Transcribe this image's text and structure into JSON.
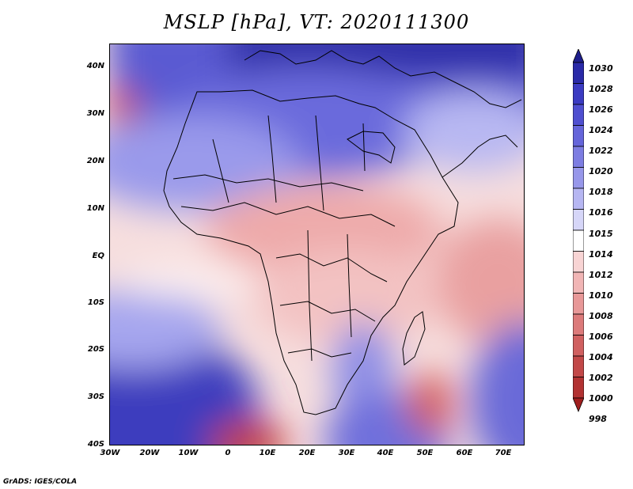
{
  "title": "MSLP [hPa], VT: 2020111300",
  "footer": "GrADS: IGES/COLA",
  "y_axis": [
    "40N",
    "30N",
    "20N",
    "10N",
    "EQ",
    "10S",
    "20S",
    "30S",
    "40S"
  ],
  "x_axis": [
    "30W",
    "20W",
    "10W",
    "0",
    "10E",
    "20E",
    "30E",
    "40E",
    "50E",
    "60E",
    "70E"
  ],
  "colorbar": {
    "levels": [
      "1030",
      "1028",
      "1026",
      "1024",
      "1022",
      "1020",
      "1018",
      "1016",
      "1015",
      "1014",
      "1012",
      "1010",
      "1008",
      "1006",
      "1004",
      "1002",
      "1000",
      "998"
    ],
    "colors": [
      "#1e1e8c",
      "#2a2aa8",
      "#3b3bc2",
      "#4f4fd0",
      "#6565da",
      "#7d7de2",
      "#9797ea",
      "#b6b6f2",
      "#d6d6f8",
      "#ffffff",
      "#f8d4d4",
      "#f1b5b5",
      "#e89898",
      "#dc7a7a",
      "#d06060",
      "#c24848",
      "#b23232",
      "#a01e1e"
    ]
  }
}
